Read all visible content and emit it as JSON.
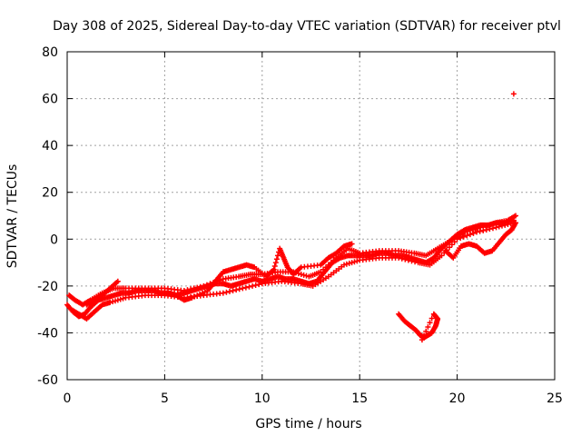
{
  "chart_data": {
    "type": "scatter",
    "title": "Day 308 of 2025, Sidereal Day-to-day VTEC variation (SDTVAR) for receiver ptvl",
    "xlabel": "GPS time / hours",
    "ylabel": "SDTVAR / TECUs",
    "xlim": [
      0,
      25
    ],
    "ylim": [
      -60,
      80
    ],
    "xticks": [
      0,
      5,
      10,
      15,
      20,
      25
    ],
    "yticks": [
      -60,
      -40,
      -20,
      0,
      20,
      40,
      60,
      80
    ],
    "xtick_labels": [
      "0",
      "5",
      "10",
      "15",
      "20",
      "25"
    ],
    "ytick_labels": [
      "-60",
      "-40",
      "-20",
      "0",
      "20",
      "40",
      "60",
      "80"
    ],
    "grid": true,
    "marker": "+",
    "color": "#ff0000",
    "series": [
      {
        "name": "main_trace",
        "x": [
          0.0,
          0.3,
          0.6,
          0.9,
          1.2,
          1.6,
          2.0,
          2.4,
          2.8,
          3.2,
          3.6,
          4.0,
          4.4,
          4.8,
          5.2,
          5.6,
          6.0,
          6.4,
          6.8,
          7.2,
          7.6,
          8.0,
          8.4,
          8.8,
          9.2,
          9.6,
          10.0,
          10.4,
          10.8,
          11.2,
          11.6,
          12.0,
          12.4,
          12.8,
          13.2,
          13.6,
          14.0,
          14.4,
          14.8,
          15.2,
          15.6,
          16.0,
          16.4,
          16.8,
          17.2,
          17.6,
          18.0,
          18.4,
          18.8,
          19.2,
          19.6,
          20.0,
          20.4,
          20.8,
          21.2,
          21.6,
          22.0,
          22.4,
          22.9
        ],
        "y": [
          -28,
          -31,
          -33,
          -32,
          -29,
          -26,
          -25,
          -24,
          -23,
          -23,
          -22,
          -22,
          -22,
          -23,
          -23,
          -24,
          -23,
          -22,
          -21,
          -20,
          -19,
          -19,
          -20,
          -19,
          -18,
          -17,
          -18,
          -17,
          -16,
          -17,
          -17,
          -18,
          -19,
          -18,
          -14,
          -10,
          -8,
          -7,
          -7,
          -7,
          -7,
          -6,
          -6,
          -7,
          -7,
          -8,
          -9,
          -10,
          -8,
          -4,
          -1,
          2,
          4,
          5,
          6,
          6,
          7,
          7,
          8
        ]
      },
      {
        "name": "lower_envelope",
        "x": [
          0.2,
          0.6,
          1.0,
          1.4,
          1.8,
          2.2,
          3.0,
          4.0,
          5.0,
          6.0,
          7.0,
          8.0,
          9.0,
          10.0,
          11.0,
          12.0,
          12.6,
          13.4,
          14.2,
          15.0,
          16.0,
          17.0,
          18.0,
          18.6,
          19.2,
          20.0,
          21.0,
          22.0,
          22.9
        ],
        "y": [
          -30,
          -32,
          -34,
          -31,
          -28,
          -27,
          -25,
          -24,
          -24,
          -25,
          -24,
          -23,
          -21,
          -19,
          -18,
          -19,
          -20,
          -16,
          -11,
          -9,
          -8,
          -8,
          -10,
          -11,
          -7,
          0,
          3,
          5,
          7
        ]
      },
      {
        "name": "upper_envelope",
        "x": [
          0.1,
          0.4,
          0.8,
          1.2,
          1.8,
          2.4,
          3.0,
          4.0,
          5.0,
          6.0,
          7.0,
          8.0,
          8.8,
          9.4,
          10.0,
          10.8,
          11.6,
          12.4,
          13.0,
          13.8,
          14.4,
          15.0,
          16.0,
          17.0,
          17.8,
          18.4,
          19.0,
          19.6,
          20.4,
          21.2,
          22.0,
          22.6,
          23.0
        ],
        "y": [
          -24,
          -26,
          -28,
          -26,
          -23,
          -21,
          -21,
          -21,
          -21,
          -22,
          -20,
          -17,
          -16,
          -15,
          -15,
          -14,
          -14,
          -16,
          -14,
          -8,
          -4,
          -6,
          -5,
          -5,
          -6,
          -7,
          -4,
          -1,
          3,
          5,
          7,
          8,
          10
        ]
      },
      {
        "name": "arcs",
        "x": [
          1.0,
          1.4,
          1.8,
          2.2,
          2.6,
          5.0,
          5.6,
          6.0,
          6.4,
          7.2,
          7.6,
          8.0,
          8.4,
          8.8,
          9.2,
          9.6,
          10.2,
          10.6,
          10.9,
          11.1,
          11.3,
          11.6,
          12.0,
          13.0,
          13.4,
          13.8,
          14.2,
          14.6,
          19.4,
          19.8,
          20.2,
          20.6,
          21.0,
          21.4,
          21.8,
          22.2,
          22.5,
          22.8,
          23.0
        ],
        "y": [
          -28,
          -26,
          -24,
          -21,
          -18,
          -23,
          -24,
          -26,
          -25,
          -22,
          -18,
          -14,
          -13,
          -12,
          -11,
          -12,
          -16,
          -13,
          -4,
          -8,
          -12,
          -15,
          -12,
          -11,
          -8,
          -6,
          -3,
          -2,
          -5,
          -8,
          -3,
          -2,
          -3,
          -6,
          -5,
          -1,
          2,
          4,
          7
        ]
      },
      {
        "name": "outlier_cluster",
        "x": [
          17.0,
          17.3,
          17.6,
          17.9,
          18.1,
          18.3,
          18.5,
          18.7,
          18.9,
          19.0,
          18.8,
          18.2
        ],
        "y": [
          -32,
          -35,
          -37,
          -39,
          -41,
          -42,
          -41,
          -40,
          -37,
          -34,
          -32,
          -43
        ]
      },
      {
        "name": "outlier_point",
        "x": [
          22.9
        ],
        "y": [
          62
        ]
      }
    ]
  }
}
